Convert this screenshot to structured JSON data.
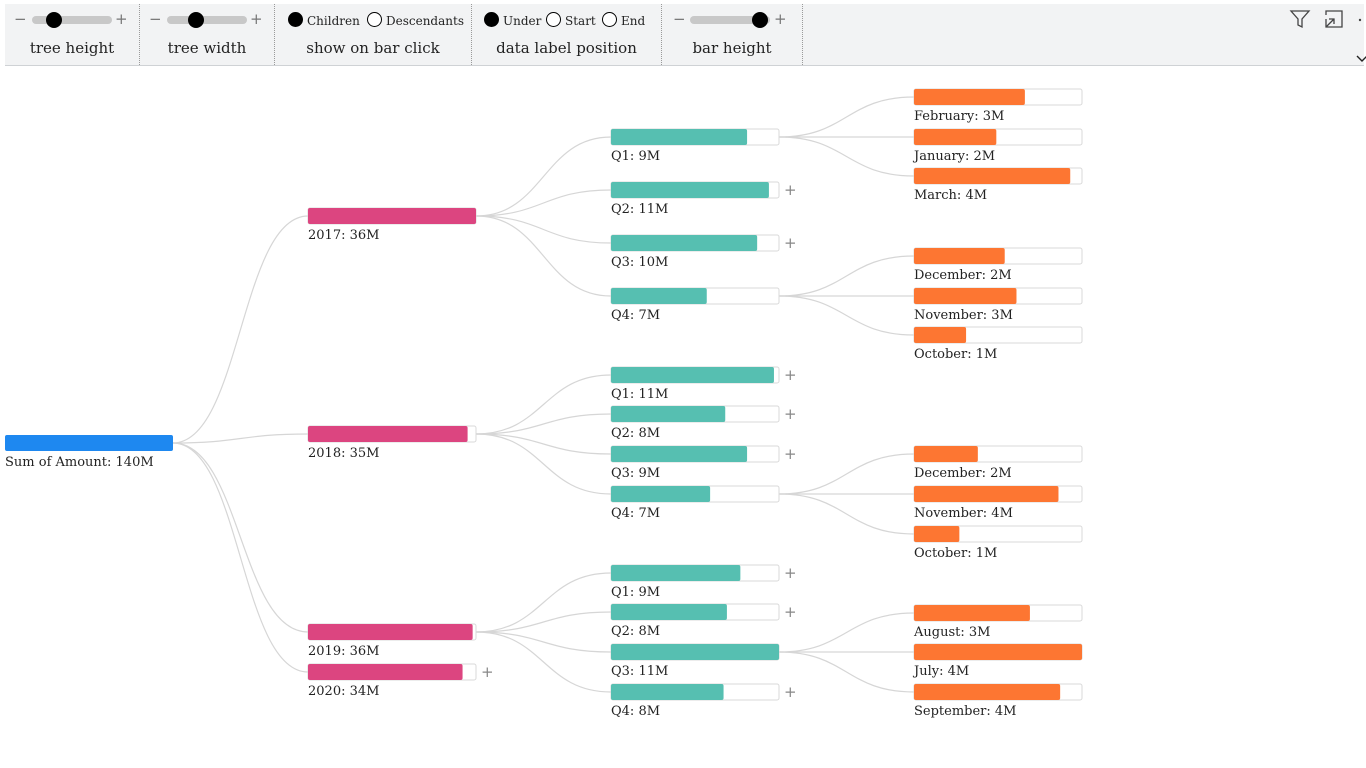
{
  "controls": {
    "tree_height": {
      "label": "tree height",
      "minus": "−",
      "plus": "+",
      "value": 0.28
    },
    "tree_width": {
      "label": "tree width",
      "minus": "−",
      "plus": "+",
      "value": 0.36
    },
    "show_on_bar_click": {
      "label": "show on bar click",
      "options": [
        "Children",
        "Descendants"
      ],
      "selected": "Children"
    },
    "data_label_position": {
      "label": "data label position",
      "options": [
        "Under",
        "Start",
        "End"
      ],
      "selected": "Under"
    },
    "bar_height": {
      "label": "bar height",
      "minus": "−",
      "plus": "+",
      "value": 0.88
    }
  },
  "header_icons": {
    "filter": "filter-icon",
    "focus": "focus-mode-icon",
    "more": "more-options-icon",
    "collapse": "chevron-down-icon"
  },
  "colors": {
    "root": "#1e88f0",
    "year": "#dc4580",
    "quarter": "#56bfb1",
    "month": "#fd7632",
    "track_border": "#d9d9d9",
    "link": "#d6d6d6"
  },
  "tree": {
    "root": {
      "label": "Sum of Amount: 140M",
      "fill": 1.0
    },
    "years": [
      {
        "label": "2017: 36M",
        "fill": 1.0,
        "plus": false,
        "quarters": [
          {
            "label": "Q1: 9M",
            "fill": 0.81,
            "plus": false,
            "months": [
              {
                "label": "February: 3M",
                "fill": 0.66
              },
              {
                "label": "January: 2M",
                "fill": 0.49
              },
              {
                "label": "March: 4M",
                "fill": 0.93
              }
            ]
          },
          {
            "label": "Q2: 11M",
            "fill": 0.94,
            "plus": true,
            "months": []
          },
          {
            "label": "Q3: 10M",
            "fill": 0.87,
            "plus": true,
            "months": []
          },
          {
            "label": "Q4: 7M",
            "fill": 0.57,
            "plus": false,
            "months": [
              {
                "label": "December: 2M",
                "fill": 0.54
              },
              {
                "label": "November: 3M",
                "fill": 0.61
              },
              {
                "label": "October: 1M",
                "fill": 0.31
              }
            ]
          }
        ]
      },
      {
        "label": "2018: 35M",
        "fill": 0.95,
        "plus": false,
        "quarters": [
          {
            "label": "Q1: 11M",
            "fill": 0.97,
            "plus": true,
            "months": []
          },
          {
            "label": "Q2: 8M",
            "fill": 0.68,
            "plus": true,
            "months": []
          },
          {
            "label": "Q3: 9M",
            "fill": 0.81,
            "plus": true,
            "months": []
          },
          {
            "label": "Q4: 7M",
            "fill": 0.59,
            "plus": false,
            "months": [
              {
                "label": "December: 2M",
                "fill": 0.38
              },
              {
                "label": "November: 4M",
                "fill": 0.86
              },
              {
                "label": "October: 1M",
                "fill": 0.27
              }
            ]
          }
        ]
      },
      {
        "label": "2019: 36M",
        "fill": 0.98,
        "plus": false,
        "quarters": [
          {
            "label": "Q1: 9M",
            "fill": 0.77,
            "plus": true,
            "months": []
          },
          {
            "label": "Q2: 8M",
            "fill": 0.69,
            "plus": true,
            "months": []
          },
          {
            "label": "Q3: 11M",
            "fill": 1.0,
            "plus": false,
            "months": [
              {
                "label": "August: 3M",
                "fill": 0.69
              },
              {
                "label": "July: 4M",
                "fill": 1.0
              },
              {
                "label": "September: 4M",
                "fill": 0.87
              }
            ]
          },
          {
            "label": "Q4: 8M",
            "fill": 0.67,
            "plus": true,
            "months": []
          }
        ]
      },
      {
        "label": "2020: 34M",
        "fill": 0.92,
        "plus": true,
        "quarters": []
      }
    ]
  }
}
